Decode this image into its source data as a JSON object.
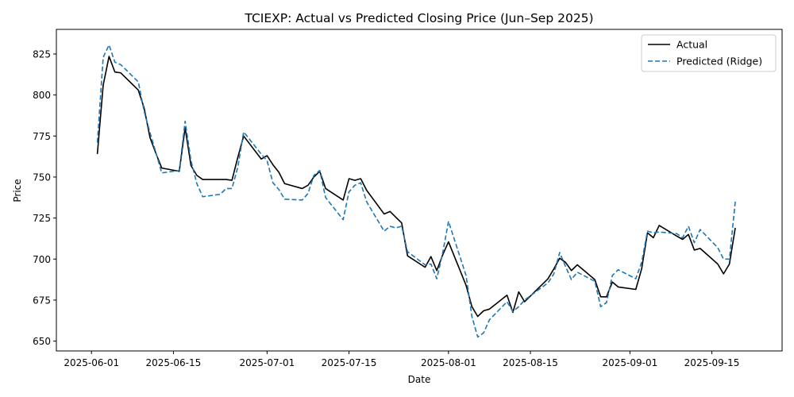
{
  "chart_data": {
    "type": "line",
    "title": "TCIEXP: Actual vs Predicted Closing Price (Jun–Sep 2025)",
    "xlabel": "Date",
    "ylabel": "Price",
    "xlim": [
      "2025-05-26",
      "2025-09-27"
    ],
    "ylim": [
      644,
      840
    ],
    "x_ticks": [
      "2025-06-01",
      "2025-06-15",
      "2025-07-01",
      "2025-07-15",
      "2025-08-01",
      "2025-08-15",
      "2025-09-01",
      "2025-09-15"
    ],
    "y_ticks": [
      650,
      675,
      700,
      725,
      750,
      775,
      800,
      825
    ],
    "grid": false,
    "legend": "top-right",
    "colors": {
      "actual": "#000000",
      "predicted": "#1f77b4"
    },
    "series": [
      {
        "name": "Actual",
        "style": "solid",
        "points": [
          [
            "2025-06-02",
            764
          ],
          [
            "2025-06-03",
            806
          ],
          [
            "2025-06-04",
            823.5
          ],
          [
            "2025-06-05",
            814
          ],
          [
            "2025-06-06",
            813.5
          ],
          [
            "2025-06-09",
            803
          ],
          [
            "2025-06-10",
            792
          ],
          [
            "2025-06-11",
            774
          ],
          [
            "2025-06-12",
            764.5
          ],
          [
            "2025-06-13",
            755.5
          ],
          [
            "2025-06-16",
            753.5
          ],
          [
            "2025-06-17",
            780
          ],
          [
            "2025-06-18",
            757
          ],
          [
            "2025-06-19",
            751
          ],
          [
            "2025-06-20",
            748.5
          ],
          [
            "2025-06-23",
            748.5
          ],
          [
            "2025-06-24",
            748.5
          ],
          [
            "2025-06-25",
            748
          ],
          [
            "2025-06-26",
            762
          ],
          [
            "2025-06-27",
            775
          ],
          [
            "2025-06-30",
            761
          ],
          [
            "2025-07-01",
            763
          ],
          [
            "2025-07-02",
            757.5
          ],
          [
            "2025-07-03",
            753
          ],
          [
            "2025-07-04",
            746
          ],
          [
            "2025-07-07",
            743
          ],
          [
            "2025-07-08",
            745
          ],
          [
            "2025-07-09",
            750
          ],
          [
            "2025-07-10",
            753.5
          ],
          [
            "2025-07-11",
            743
          ],
          [
            "2025-07-14",
            736
          ],
          [
            "2025-07-15",
            749
          ],
          [
            "2025-07-16",
            748
          ],
          [
            "2025-07-17",
            749
          ],
          [
            "2025-07-18",
            742
          ],
          [
            "2025-07-21",
            727.5
          ],
          [
            "2025-07-22",
            729
          ],
          [
            "2025-07-23",
            725.5
          ],
          [
            "2025-07-24",
            722
          ],
          [
            "2025-07-25",
            702
          ],
          [
            "2025-07-28",
            695
          ],
          [
            "2025-07-29",
            701.5
          ],
          [
            "2025-07-30",
            693
          ],
          [
            "2025-07-31",
            702.5
          ],
          [
            "2025-08-01",
            710.5
          ],
          [
            "2025-08-04",
            684
          ],
          [
            "2025-08-05",
            671
          ],
          [
            "2025-08-06",
            665
          ],
          [
            "2025-08-07",
            668.5
          ],
          [
            "2025-08-08",
            669.5
          ],
          [
            "2025-08-11",
            678
          ],
          [
            "2025-08-12",
            667.5
          ],
          [
            "2025-08-13",
            680
          ],
          [
            "2025-08-14",
            674
          ],
          [
            "2025-08-18",
            688
          ],
          [
            "2025-08-19",
            694
          ],
          [
            "2025-08-20",
            700.5
          ],
          [
            "2025-08-21",
            698
          ],
          [
            "2025-08-22",
            693
          ],
          [
            "2025-08-23",
            696.5
          ],
          [
            "2025-08-26",
            687.5
          ],
          [
            "2025-08-27",
            677
          ],
          [
            "2025-08-28",
            677
          ],
          [
            "2025-08-29",
            686
          ],
          [
            "2025-08-30",
            683
          ],
          [
            "2025-09-02",
            681.5
          ],
          [
            "2025-09-03",
            694
          ],
          [
            "2025-09-04",
            716
          ],
          [
            "2025-09-05",
            713
          ],
          [
            "2025-09-06",
            720.5
          ],
          [
            "2025-09-09",
            714
          ],
          [
            "2025-09-10",
            712
          ],
          [
            "2025-09-11",
            715
          ],
          [
            "2025-09-12",
            705.5
          ],
          [
            "2025-09-13",
            706.5
          ],
          [
            "2025-09-16",
            697
          ],
          [
            "2025-09-17",
            691
          ],
          [
            "2025-09-18",
            697
          ],
          [
            "2025-09-19",
            719
          ]
        ]
      },
      {
        "name": "Predicted (Ridge)",
        "style": "dashed",
        "points": [
          [
            "2025-06-02",
            771
          ],
          [
            "2025-06-03",
            823
          ],
          [
            "2025-06-04",
            830.5
          ],
          [
            "2025-06-05",
            820
          ],
          [
            "2025-06-06",
            818.5
          ],
          [
            "2025-06-09",
            808
          ],
          [
            "2025-06-10",
            790
          ],
          [
            "2025-06-11",
            777
          ],
          [
            "2025-06-12",
            765
          ],
          [
            "2025-06-13",
            752.5
          ],
          [
            "2025-06-16",
            754
          ],
          [
            "2025-06-17",
            784
          ],
          [
            "2025-06-18",
            760
          ],
          [
            "2025-06-19",
            746
          ],
          [
            "2025-06-20",
            738
          ],
          [
            "2025-06-23",
            739.5
          ],
          [
            "2025-06-24",
            743
          ],
          [
            "2025-06-25",
            743
          ],
          [
            "2025-06-26",
            756
          ],
          [
            "2025-06-27",
            777.5
          ],
          [
            "2025-06-30",
            764
          ],
          [
            "2025-07-01",
            760
          ],
          [
            "2025-07-02",
            746.5
          ],
          [
            "2025-07-03",
            742.5
          ],
          [
            "2025-07-04",
            736.5
          ],
          [
            "2025-07-07",
            736
          ],
          [
            "2025-07-08",
            740
          ],
          [
            "2025-07-09",
            751
          ],
          [
            "2025-07-10",
            754
          ],
          [
            "2025-07-11",
            737.5
          ],
          [
            "2025-07-14",
            724
          ],
          [
            "2025-07-15",
            741
          ],
          [
            "2025-07-16",
            745
          ],
          [
            "2025-07-17",
            746.5
          ],
          [
            "2025-07-18",
            735
          ],
          [
            "2025-07-21",
            717
          ],
          [
            "2025-07-22",
            720
          ],
          [
            "2025-07-23",
            719
          ],
          [
            "2025-07-24",
            720
          ],
          [
            "2025-07-25",
            704.5
          ],
          [
            "2025-07-28",
            696.5
          ],
          [
            "2025-07-29",
            697
          ],
          [
            "2025-07-30",
            688
          ],
          [
            "2025-07-31",
            703.5
          ],
          [
            "2025-08-01",
            723
          ],
          [
            "2025-08-04",
            690
          ],
          [
            "2025-08-05",
            665
          ],
          [
            "2025-08-06",
            652.5
          ],
          [
            "2025-08-07",
            655
          ],
          [
            "2025-08-08",
            663
          ],
          [
            "2025-08-11",
            674
          ],
          [
            "2025-08-12",
            668
          ],
          [
            "2025-08-13",
            671
          ],
          [
            "2025-08-14",
            675
          ],
          [
            "2025-08-18",
            685.5
          ],
          [
            "2025-08-19",
            691
          ],
          [
            "2025-08-20",
            704
          ],
          [
            "2025-08-21",
            695.5
          ],
          [
            "2025-08-22",
            687.5
          ],
          [
            "2025-08-23",
            692
          ],
          [
            "2025-08-26",
            686.5
          ],
          [
            "2025-08-27",
            671
          ],
          [
            "2025-08-28",
            673.5
          ],
          [
            "2025-08-29",
            690
          ],
          [
            "2025-08-30",
            693.5
          ],
          [
            "2025-09-02",
            688
          ],
          [
            "2025-09-03",
            698
          ],
          [
            "2025-09-04",
            717
          ],
          [
            "2025-09-05",
            716
          ],
          [
            "2025-09-06",
            716.5
          ],
          [
            "2025-09-09",
            715.5
          ],
          [
            "2025-09-10",
            713
          ],
          [
            "2025-09-11",
            720
          ],
          [
            "2025-09-12",
            710
          ],
          [
            "2025-09-13",
            718
          ],
          [
            "2025-09-16",
            707
          ],
          [
            "2025-09-17",
            700
          ],
          [
            "2025-09-18",
            700
          ],
          [
            "2025-09-19",
            735
          ]
        ]
      }
    ]
  }
}
